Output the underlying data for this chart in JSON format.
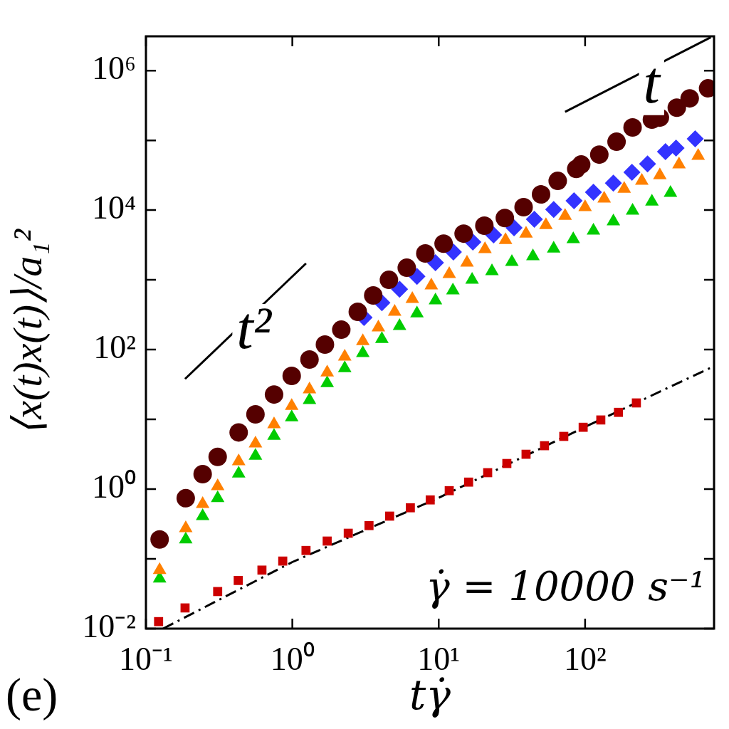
{
  "chart_data": {
    "type": "scatter",
    "xlabel": "tγ̇",
    "ylabel": "⟨x(t)x(t)⟩/a₁²",
    "log": "xy",
    "xlim": [
      0.1,
      760
    ],
    "ylim": [
      0.01,
      3100000
    ],
    "xticks": [
      {
        "value": 0.1,
        "label": "10⁻¹"
      },
      {
        "value": 1,
        "label": "10⁰"
      },
      {
        "value": 10,
        "label": "10¹"
      },
      {
        "value": 100,
        "label": "10²"
      }
    ],
    "yticks": [
      {
        "value": 0.01,
        "label": "10⁻²"
      },
      {
        "value": 0.1,
        "label": null
      },
      {
        "value": 1,
        "label": "10⁰"
      },
      {
        "value": 10,
        "label": null
      },
      {
        "value": 100,
        "label": "10²"
      },
      {
        "value": 1000,
        "label": null
      },
      {
        "value": 10000,
        "label": "10⁴"
      },
      {
        "value": 100000,
        "label": null
      },
      {
        "value": 1000000,
        "label": "10⁶"
      }
    ],
    "annotations": [
      "γ̇ = 10000 s⁻¹",
      "(e)",
      "t²",
      "t"
    ],
    "series": [
      {
        "marker": "circle",
        "color": "#550000",
        "x": [
          0.124,
          0.187,
          0.244,
          0.309,
          0.43,
          0.56,
          0.75,
          0.99,
          1.31,
          1.67,
          2.16,
          2.8,
          3.57,
          4.57,
          6.05,
          8.1,
          10.8,
          14.8,
          20.5,
          28.3,
          38,
          50,
          65,
          87,
          94,
          125,
          164,
          211,
          286,
          324,
          423,
          518,
          692
        ],
        "values": [
          0.19,
          0.74,
          1.64,
          2.9,
          6.5,
          11.8,
          22.7,
          42,
          72,
          118,
          193,
          348,
          597,
          1000,
          1490,
          2390,
          3300,
          4600,
          5970,
          7700,
          11000,
          16800,
          26200,
          39000,
          45000,
          62500,
          95500,
          153000,
          198000,
          212000,
          294000,
          400000,
          556000
        ]
      },
      {
        "marker": "diamond",
        "color": "#3333ff",
        "x": [
          3.09,
          4.09,
          5.4,
          7.1,
          9.5,
          12.6,
          17.1,
          23.7,
          32.7,
          45,
          61,
          84,
          114,
          156,
          209,
          267,
          354,
          418,
          565
        ],
        "values": [
          288,
          471,
          736,
          1120,
          1760,
          2500,
          3480,
          4400,
          5560,
          7370,
          10200,
          13600,
          18000,
          24400,
          34800,
          46000,
          68700,
          77300,
          105000
        ]
      },
      {
        "marker": "triangle",
        "color": "#ff8000",
        "x": [
          0.124,
          0.187,
          0.244,
          0.309,
          0.43,
          0.56,
          0.75,
          0.99,
          1.31,
          1.73,
          2.28,
          3.03,
          3.87,
          5.0,
          6.6,
          8.9,
          11.8,
          15.6,
          20.7,
          28.6,
          39.5,
          54,
          73,
          100,
          135,
          185,
          244,
          324,
          438,
          592
        ],
        "values": [
          0.069,
          0.275,
          0.61,
          1.1,
          2.5,
          4.5,
          8.5,
          15.6,
          26.9,
          47,
          79,
          132,
          207,
          348,
          530,
          828,
          1210,
          1760,
          2750,
          3720,
          4600,
          6100,
          8280,
          11000,
          14600,
          20200,
          26200,
          31600,
          45000,
          59700
        ]
      },
      {
        "marker": "triangle",
        "color": "#00cc00",
        "x": [
          0.124,
          0.187,
          0.244,
          0.309,
          0.43,
          0.56,
          0.75,
          0.99,
          1.31,
          1.73,
          2.28,
          3.03,
          4.09,
          5.4,
          7.1,
          9.5,
          12.5,
          16.9,
          23.1,
          31.6,
          44,
          61,
          83,
          114,
          156,
          211,
          286,
          383
        ],
        "values": [
          0.052,
          0.19,
          0.41,
          0.74,
          1.67,
          3.0,
          5.8,
          10.7,
          18.9,
          33,
          54,
          89,
          142,
          217,
          331,
          506,
          703,
          1000,
          1330,
          1800,
          2170,
          2810,
          3820,
          5060,
          6870,
          9770,
          13200,
          17600
        ]
      },
      {
        "marker": "square",
        "color": "#cc0000",
        "x": [
          0.122,
          0.185,
          0.309,
          0.427,
          0.62,
          0.86,
          1.24,
          1.73,
          2.41,
          3.34,
          4.62,
          6.4,
          8.75,
          11.8,
          16,
          21.6,
          29.2,
          39.5,
          52.8,
          71.5,
          97,
          128,
          169,
          224
        ],
        "values": [
          0.0126,
          0.0198,
          0.034,
          0.049,
          0.069,
          0.093,
          0.132,
          0.18,
          0.233,
          0.3,
          0.41,
          0.54,
          0.7,
          0.95,
          1.26,
          1.72,
          2.33,
          3.16,
          4.19,
          5.7,
          7.7,
          9.8,
          12.6,
          17.2
        ]
      },
      {
        "type": "line",
        "line_style": "dashed",
        "color": "#000000",
        "x": [
          0.131,
          1,
          10,
          100,
          748
        ],
        "values": [
          0.01,
          0.09,
          0.75,
          7.8,
          57
        ]
      },
      {
        "type": "line",
        "line_style": "solid",
        "color": "#000000",
        "x": [
          0.185,
          1.24
        ],
        "values": [
          38,
          1720
        ]
      },
      {
        "type": "line",
        "line_style": "solid",
        "color": "#000000",
        "x": [
          73,
          722
        ],
        "values": [
          256000,
          3000000
        ]
      }
    ]
  }
}
